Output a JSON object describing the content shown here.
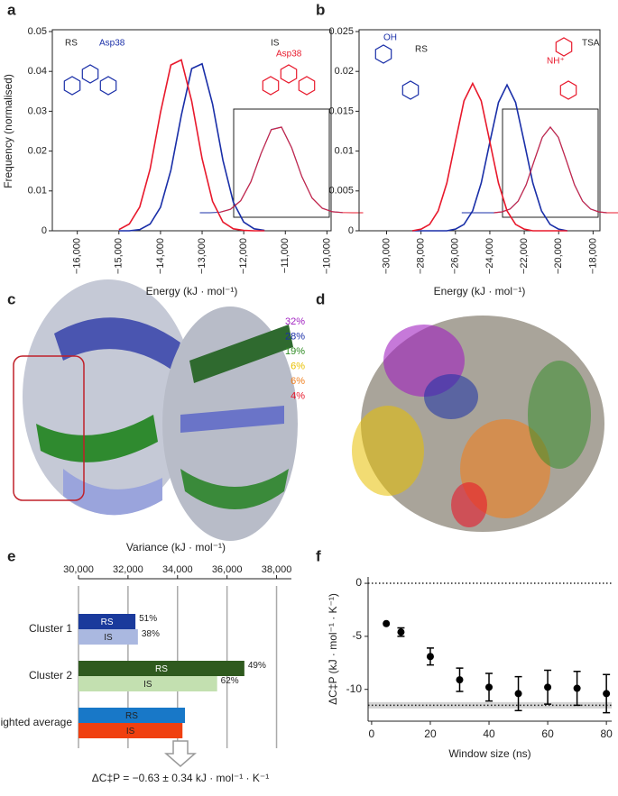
{
  "chart_data": [
    {
      "label": "a",
      "type": "line",
      "x": [
        -15000,
        -14750,
        -14500,
        -14250,
        -14000,
        -13750,
        -13500,
        -13250,
        -13000,
        -12750,
        -12500,
        -12250,
        -12000,
        -11750,
        -11500
      ],
      "series": [
        {
          "name": "RS",
          "color": "#1a2fa8",
          "values": [
            0,
            0,
            0.0003,
            0.0017,
            0.0059,
            0.0152,
            0.029,
            0.0407,
            0.0419,
            0.0318,
            0.0177,
            0.0072,
            0.0022,
            0.0005,
            0.0001
          ]
        },
        {
          "name": "IS",
          "color": "#e8192c",
          "values": [
            0.0003,
            0.0017,
            0.006,
            0.0155,
            0.0297,
            0.0416,
            0.0429,
            0.0325,
            0.0181,
            0.0074,
            0.0022,
            0.0005,
            0.0001,
            0,
            0
          ]
        }
      ],
      "xlim": [
        -16600,
        -9900
      ],
      "ylim": [
        0,
        0.05
      ],
      "xticks": [
        {
          "value": -16000,
          "label": "−16,000"
        },
        {
          "value": -15000,
          "label": "−15,000"
        },
        {
          "value": -14000,
          "label": "−14,000"
        },
        {
          "value": -13000,
          "label": "−13,000"
        },
        {
          "value": -12000,
          "label": "−12,000"
        },
        {
          "value": -11000,
          "label": "−11,000"
        },
        {
          "value": -10000,
          "label": "−10,000"
        }
      ],
      "yticks": [
        0,
        0.01,
        0.02,
        0.03,
        0.04,
        0.05
      ],
      "xlabel": "Energy (kJ · mol⁻¹)",
      "ylabel": "Frequency (normalised)",
      "annotations": [
        "Asp38",
        "Asp38"
      ]
    },
    {
      "label": "b",
      "type": "line",
      "x": [
        -28500,
        -28000,
        -27500,
        -27000,
        -26500,
        -26000,
        -25500,
        -25000,
        -24500,
        -24000,
        -23500,
        -23000,
        -22500,
        -22000,
        -21500,
        -21000,
        -20500,
        -20000,
        -19500
      ],
      "series": [
        {
          "name": "RS",
          "color": "#1a2fa8",
          "values": [
            0,
            0,
            0,
            0,
            0,
            0.0002,
            0.0008,
            0.0025,
            0.006,
            0.0111,
            0.0161,
            0.0183,
            0.0161,
            0.0111,
            0.006,
            0.0025,
            0.0008,
            0.0002,
            0
          ]
        },
        {
          "name": "TSA",
          "color": "#e8192c",
          "values": [
            0,
            0.0002,
            0.0008,
            0.0025,
            0.006,
            0.0112,
            0.0163,
            0.0185,
            0.0163,
            0.0112,
            0.006,
            0.0025,
            0.0008,
            0.0002,
            0,
            0,
            0,
            0,
            0
          ]
        }
      ],
      "xlim": [
        -31600,
        -17600
      ],
      "ylim": [
        0,
        0.025
      ],
      "xticks": [
        {
          "value": -30000,
          "label": "−30,000"
        },
        {
          "value": -28000,
          "label": "−28,000"
        },
        {
          "value": -26000,
          "label": "−26,000"
        },
        {
          "value": -24000,
          "label": "−24,000"
        },
        {
          "value": -22000,
          "label": "−22,000"
        },
        {
          "value": -20000,
          "label": "−20,000"
        },
        {
          "value": -18000,
          "label": "−18,000"
        }
      ],
      "yticks": [
        0,
        0.005,
        0.01,
        0.015,
        0.02,
        0.025
      ],
      "xlabel": "Energy (kJ · mol⁻¹)",
      "annotations": [
        "OH",
        "NH⁺"
      ]
    },
    {
      "label": "e",
      "type": "barh",
      "title": "Variance (kJ · mol⁻¹)",
      "categories": [
        "Cluster 1",
        "Cluster 2",
        "Weighted average"
      ],
      "series": [
        {
          "name": "RS",
          "colors": [
            "#1a3a9c",
            "#2f5a1f",
            "#1878c8"
          ],
          "values": [
            32300,
            36700,
            34300
          ],
          "shares": [
            "51%",
            "49%",
            null
          ]
        },
        {
          "name": "IS",
          "colors": [
            "#aab8e0",
            "#c3e0b0",
            "#f04010"
          ],
          "values": [
            32400,
            35600,
            34200
          ],
          "shares": [
            "38%",
            "62%",
            null
          ]
        }
      ],
      "xlim": [
        30000,
        38600
      ],
      "xticks": [
        {
          "value": 30000,
          "label": "30,000"
        },
        {
          "value": 32000,
          "label": "32,000"
        },
        {
          "value": 34000,
          "label": "34,000"
        },
        {
          "value": 36000,
          "label": "36,000"
        },
        {
          "value": 38000,
          "label": "38,000"
        }
      ],
      "grid": true,
      "result": "ΔC‡P = −0.63 ± 0.34 kJ · mol⁻¹ · K⁻¹"
    },
    {
      "label": "f",
      "type": "scatter",
      "x": [
        5,
        10,
        20,
        30,
        40,
        50,
        60,
        70,
        80
      ],
      "series": [
        {
          "color": "#000000",
          "values": [
            -3.8,
            -4.6,
            -6.9,
            -9.1,
            -9.8,
            -10.4,
            -9.8,
            -9.9,
            -10.4
          ],
          "errors": [
            0,
            0.4,
            0.8,
            1.1,
            1.3,
            1.6,
            1.6,
            1.6,
            1.8
          ]
        }
      ],
      "xlim": [
        -1.2,
        81.8
      ],
      "ylim": [
        -13,
        0.6
      ],
      "xticks": [
        0,
        20,
        40,
        60,
        80
      ],
      "yticks": [
        0,
        -5,
        -10
      ],
      "xlabel": "Window size (ns)",
      "ylabel": "ΔC‡P (kJ · mol⁻¹ · K⁻¹)",
      "reference": -11.5,
      "reference_band": [
        -11.8,
        -11.2
      ]
    }
  ],
  "panels": [
    {
      "label": "c"
    },
    {
      "label": "d",
      "populations": [
        {
          "text": "32%",
          "color": "#a020c0"
        },
        {
          "text": "28%",
          "color": "#1a2fa8"
        },
        {
          "text": "19%",
          "color": "#2e8b22"
        },
        {
          "text": "6%",
          "color": "#e8c000"
        },
        {
          "text": "6%",
          "color": "#f08020"
        },
        {
          "text": "4%",
          "color": "#e8192c"
        }
      ]
    }
  ]
}
